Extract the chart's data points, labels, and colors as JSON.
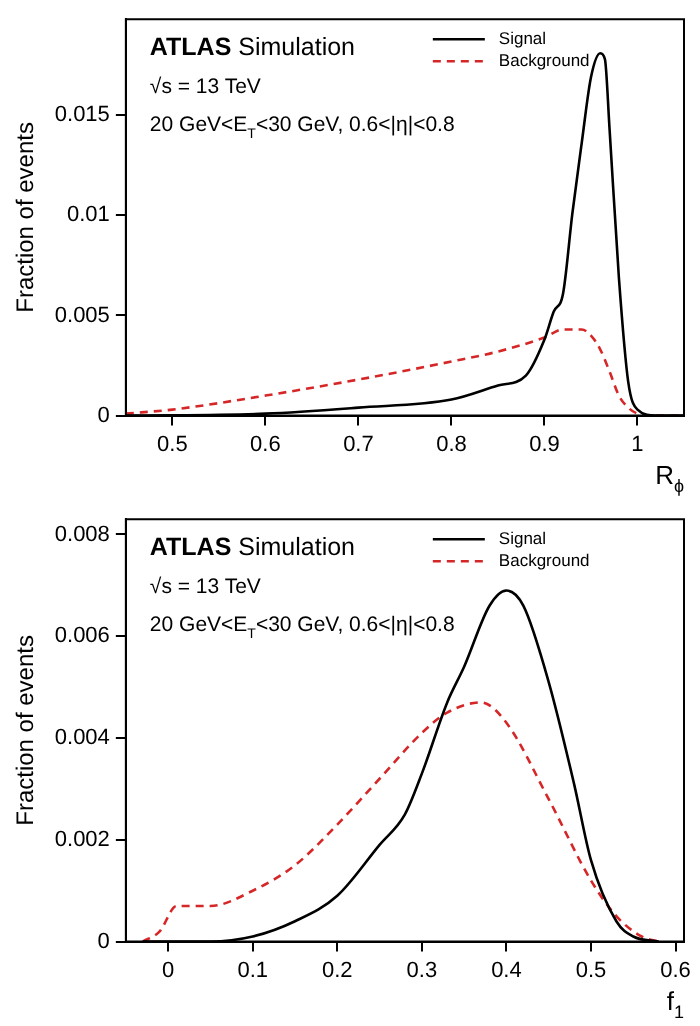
{
  "chart_data": [
    {
      "type": "line",
      "xlabel": "R$_{ϕ}$",
      "ylabel": "Fraction of events",
      "annotations": [
        "ATLAS Simulation",
        "√s = 13 TeV",
        "20 GeV<E$_{T}$<30 GeV, 0.6<|η|<0.8"
      ],
      "xlim": [
        0.45,
        1.05
      ],
      "xticks": [
        0.5,
        0.6,
        0.7,
        0.8,
        0.9,
        1
      ],
      "ylim": [
        0,
        0.0198
      ],
      "yticks": [
        0,
        0.005,
        0.01,
        0.015
      ],
      "legend": "top right",
      "grid": false,
      "series": [
        {
          "name": "Signal",
          "color": "#000000",
          "line_style": "solid",
          "x": [
            0.45,
            0.6,
            0.7,
            0.8,
            0.85,
            0.88,
            0.9,
            0.91,
            0.92,
            0.93,
            0.94,
            0.95,
            0.96,
            0.965,
            0.97,
            0.98,
            0.99,
            1.0,
            1.02,
            1.05
          ],
          "values": [
            0,
            0.0001,
            0.0004,
            0.0008,
            0.0015,
            0.002,
            0.0038,
            0.0052,
            0.0061,
            0.0101,
            0.0136,
            0.0169,
            0.0181,
            0.0178,
            0.0143,
            0.0069,
            0.0017,
            0.0003,
            0,
            0
          ]
        },
        {
          "name": "Background",
          "color": "#d62728",
          "line_style": "dashed",
          "x": [
            0.45,
            0.5,
            0.6,
            0.7,
            0.8,
            0.85,
            0.9,
            0.92,
            0.94,
            0.95,
            0.96,
            0.97,
            0.98,
            0.99,
            1.0,
            1.02,
            1.05
          ],
          "values": [
            0.0001,
            0.0003,
            0.001,
            0.0018,
            0.0027,
            0.0032,
            0.0039,
            0.0043,
            0.0043,
            0.004,
            0.0033,
            0.0022,
            0.001,
            0.0004,
            0.0001,
            0,
            0
          ]
        }
      ]
    },
    {
      "type": "line",
      "xlabel": "f$_{1}$",
      "ylabel": "Fraction of events",
      "annotations": [
        "ATLAS Simulation",
        "√s = 13 TeV",
        "20 GeV<E$_{T}$<30 GeV, 0.6<|η|<0.8"
      ],
      "xlim": [
        -0.05,
        0.61
      ],
      "xticks": [
        0,
        0.1,
        0.2,
        0.3,
        0.4,
        0.5,
        0.6
      ],
      "ylim": [
        0,
        0.0083
      ],
      "yticks": [
        0,
        0.002,
        0.004,
        0.006,
        0.008
      ],
      "legend": "top right",
      "grid": false,
      "series": [
        {
          "name": "Signal",
          "color": "#000000",
          "line_style": "solid",
          "x": [
            -0.03,
            0.05,
            0.1,
            0.15,
            0.2,
            0.25,
            0.28,
            0.3,
            0.33,
            0.35,
            0.38,
            0.4,
            0.42,
            0.45,
            0.48,
            0.5,
            0.53,
            0.55,
            0.58
          ],
          "values": [
            0,
            0,
            0.0001,
            0.0004,
            0.0009,
            0.0019,
            0.0025,
            0.0033,
            0.0047,
            0.0054,
            0.0066,
            0.0069,
            0.0066,
            0.0051,
            0.0031,
            0.0016,
            0.0004,
            0.0001,
            0
          ]
        },
        {
          "name": "Background",
          "color": "#d62728",
          "line_style": "dashed",
          "x": [
            -0.03,
            -0.01,
            0.01,
            0.05,
            0.1,
            0.15,
            0.2,
            0.25,
            0.3,
            0.33,
            0.37,
            0.4,
            0.45,
            0.5,
            0.53,
            0.56,
            0.58
          ],
          "values": [
            0,
            0.0002,
            0.0007,
            0.0007,
            0.001,
            0.0015,
            0.0023,
            0.0032,
            0.0041,
            0.0045,
            0.0047,
            0.0043,
            0.0028,
            0.0012,
            0.0005,
            0.0001,
            0
          ]
        }
      ]
    }
  ]
}
